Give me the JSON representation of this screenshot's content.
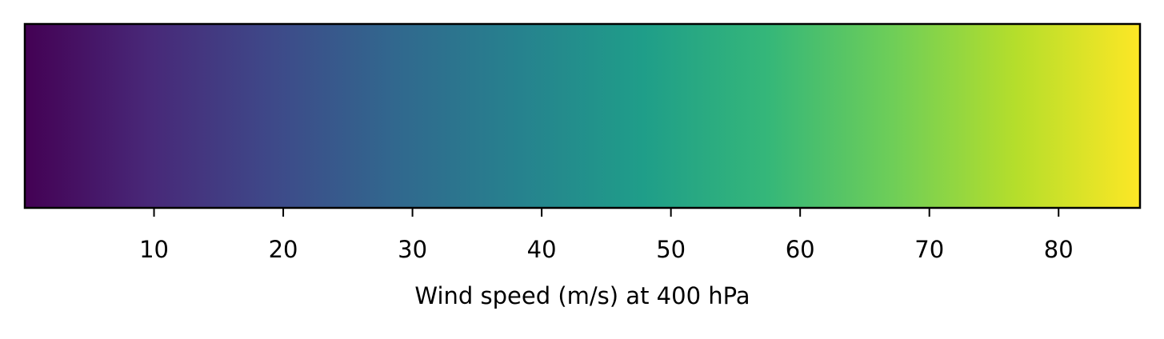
{
  "chart_data": {
    "type": "colorbar",
    "colormap": "viridis",
    "orientation": "horizontal",
    "xlabel": "Wind speed (m/s) at 400 hPa",
    "xlim": [
      0,
      86.3
    ],
    "ticks": [
      10,
      20,
      30,
      40,
      50,
      60,
      70,
      80
    ],
    "tick_labels": [
      "10",
      "20",
      "30",
      "40",
      "50",
      "60",
      "70",
      "80"
    ],
    "colors": [
      "#440154",
      "#482878",
      "#3e4989",
      "#31688e",
      "#26828e",
      "#1f9e89",
      "#35b779",
      "#6ece58",
      "#b5de2b",
      "#fde725"
    ]
  }
}
